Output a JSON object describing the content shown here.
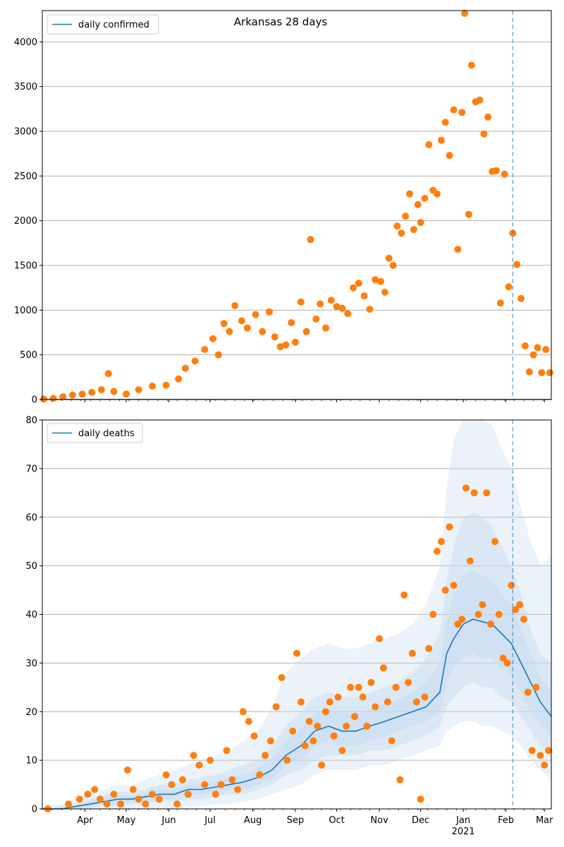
{
  "title": "Arkansas 28 days",
  "colors": {
    "line": "#1f77b4",
    "points": "#ff7f0e",
    "band": "#c6dbef",
    "vline": "#1f77b4",
    "grid": "#b0b0b0"
  },
  "x_axis": {
    "start_date": "2020-03-01",
    "end_date": "2021-03-06",
    "month_labels": [
      {
        "date": "2020-04-01",
        "label": "Apr"
      },
      {
        "date": "2020-05-01",
        "label": "May"
      },
      {
        "date": "2020-06-01",
        "label": "Jun"
      },
      {
        "date": "2020-07-01",
        "label": "Jul"
      },
      {
        "date": "2020-08-01",
        "label": "Aug"
      },
      {
        "date": "2020-09-01",
        "label": "Sep"
      },
      {
        "date": "2020-10-01",
        "label": "Oct"
      },
      {
        "date": "2020-11-01",
        "label": "Nov"
      },
      {
        "date": "2020-12-01",
        "label": "Dec"
      },
      {
        "date": "2021-01-01",
        "label": "Jan"
      },
      {
        "date": "2021-02-01",
        "label": "Feb"
      },
      {
        "date": "2021-03-01",
        "label": "Mar"
      }
    ],
    "year_label": {
      "date": "2021-01-01",
      "label": "2021"
    },
    "vline_date": "2021-02-06"
  },
  "chart_data": [
    {
      "type": "scatter",
      "legend": "daily confirmed",
      "legend_position": "upper-left",
      "ylim": [
        0,
        4350
      ],
      "yticks": [
        0,
        500,
        1000,
        1500,
        2000,
        2500,
        3000,
        3500,
        4000
      ],
      "grid": "y",
      "model_line": {
        "x": [
          "2020-03-01",
          "2021-03-06"
        ],
        "y": [
          0,
          0
        ]
      },
      "observed": {
        "x": [
          "2020-03-02",
          "2020-03-09",
          "2020-03-16",
          "2020-03-23",
          "2020-03-30",
          "2020-04-06",
          "2020-04-13",
          "2020-04-18",
          "2020-04-22",
          "2020-05-01",
          "2020-05-10",
          "2020-05-20",
          "2020-05-30",
          "2020-06-08",
          "2020-06-13",
          "2020-06-20",
          "2020-06-27",
          "2020-07-03",
          "2020-07-07",
          "2020-07-11",
          "2020-07-15",
          "2020-07-19",
          "2020-07-24",
          "2020-07-28",
          "2020-08-03",
          "2020-08-08",
          "2020-08-13",
          "2020-08-17",
          "2020-08-21",
          "2020-08-25",
          "2020-08-29",
          "2020-09-01",
          "2020-09-05",
          "2020-09-09",
          "2020-09-12",
          "2020-09-16",
          "2020-09-19",
          "2020-09-23",
          "2020-09-27",
          "2020-10-01",
          "2020-10-05",
          "2020-10-09",
          "2020-10-13",
          "2020-10-17",
          "2020-10-21",
          "2020-10-25",
          "2020-10-29",
          "2020-11-02",
          "2020-11-05",
          "2020-11-08",
          "2020-11-11",
          "2020-11-14",
          "2020-11-17",
          "2020-11-20",
          "2020-11-23",
          "2020-11-26",
          "2020-11-29",
          "2020-12-01",
          "2020-12-04",
          "2020-12-07",
          "2020-12-10",
          "2020-12-13",
          "2020-12-16",
          "2020-12-19",
          "2020-12-22",
          "2020-12-25",
          "2020-12-28",
          "2020-12-31",
          "2021-01-02",
          "2021-01-05",
          "2021-01-07",
          "2021-01-10",
          "2021-01-13",
          "2021-01-16",
          "2021-01-19",
          "2021-01-22",
          "2021-01-25",
          "2021-01-28",
          "2021-01-31",
          "2021-02-03",
          "2021-02-06",
          "2021-02-09",
          "2021-02-12",
          "2021-02-15",
          "2021-02-18",
          "2021-02-21",
          "2021-02-24",
          "2021-02-27",
          "2021-03-02",
          "2021-03-05"
        ],
        "y": [
          5,
          12,
          30,
          50,
          60,
          80,
          110,
          290,
          90,
          60,
          110,
          150,
          160,
          230,
          350,
          430,
          560,
          680,
          500,
          850,
          760,
          1050,
          880,
          800,
          950,
          760,
          980,
          700,
          590,
          610,
          860,
          640,
          1090,
          760,
          1790,
          900,
          1070,
          800,
          1110,
          1040,
          1020,
          960,
          1250,
          1300,
          1160,
          1010,
          1340,
          1320,
          1200,
          1580,
          1500,
          1940,
          1860,
          2050,
          2300,
          1900,
          2180,
          1980,
          2250,
          2850,
          2340,
          2300,
          2900,
          3100,
          2730,
          3240,
          1680,
          3210,
          4320,
          2070,
          3740,
          3330,
          3350,
          2970,
          3160,
          2550,
          2560,
          1080,
          2520,
          1260,
          1860,
          1510,
          1130,
          600,
          310,
          500,
          580,
          300,
          560,
          300
        ]
      }
    },
    {
      "type": "line",
      "legend": "daily deaths",
      "legend_position": "upper-left",
      "ylim": [
        0,
        80
      ],
      "yticks": [
        0,
        10,
        20,
        30,
        40,
        50,
        60,
        70,
        80
      ],
      "grid": "y",
      "model_line": {
        "x": [
          "2020-03-01",
          "2020-03-15",
          "2020-03-25",
          "2020-04-05",
          "2020-04-15",
          "2020-04-25",
          "2020-05-05",
          "2020-05-15",
          "2020-05-25",
          "2020-06-05",
          "2020-06-15",
          "2020-06-25",
          "2020-07-05",
          "2020-07-15",
          "2020-07-25",
          "2020-08-05",
          "2020-08-15",
          "2020-08-25",
          "2020-09-05",
          "2020-09-15",
          "2020-09-25",
          "2020-10-05",
          "2020-10-15",
          "2020-10-25",
          "2020-11-05",
          "2020-11-15",
          "2020-11-25",
          "2020-12-05",
          "2020-12-15",
          "2020-12-20",
          "2020-12-25",
          "2021-01-01",
          "2021-01-08",
          "2021-01-15",
          "2021-01-22",
          "2021-01-29",
          "2021-02-05",
          "2021-02-12",
          "2021-02-19",
          "2021-02-26",
          "2021-03-06"
        ],
        "y": [
          0,
          0,
          0.5,
          1,
          1.5,
          2,
          2,
          2.5,
          3,
          3,
          4,
          4,
          4.5,
          5,
          5.5,
          6.5,
          8,
          11,
          13,
          16,
          17,
          16,
          16,
          17,
          18,
          19,
          20,
          21,
          24,
          32,
          35,
          38,
          39,
          38.5,
          38,
          36,
          34,
          30,
          26,
          22,
          19
        ]
      },
      "bands": [
        {
          "name": "band-outer",
          "opacity": 0.35,
          "lower": [
            0,
            0,
            0,
            0,
            0,
            0,
            0,
            0,
            0,
            0,
            0.5,
            0.5,
            1,
            1,
            1.5,
            2,
            3,
            4,
            5,
            7,
            8,
            8,
            8,
            9,
            9,
            10,
            11,
            12,
            13,
            16,
            17,
            18,
            18,
            17,
            17,
            16,
            15,
            13,
            10,
            8,
            6
          ],
          "upper": [
            0.5,
            1,
            2,
            3,
            4,
            5,
            5,
            6,
            7,
            8,
            9,
            10,
            11,
            12,
            14,
            16,
            21,
            28,
            31,
            33,
            34,
            33,
            33,
            34,
            35,
            36,
            38,
            42,
            50,
            66,
            76,
            80,
            80,
            80,
            79,
            74,
            70,
            62,
            55,
            50,
            52
          ]
        },
        {
          "name": "band-middle",
          "opacity": 0.45,
          "lower": [
            0,
            0,
            0,
            0.2,
            0.5,
            0.8,
            1,
            1.2,
            1.5,
            1.5,
            2,
            2,
            2.5,
            3,
            3,
            4,
            5,
            7,
            8,
            10,
            11,
            11,
            11,
            12,
            12,
            13,
            14,
            15,
            17,
            21,
            23,
            25,
            26,
            25,
            25,
            23,
            22,
            19,
            16,
            13,
            11
          ],
          "upper": [
            0.2,
            0.5,
            1,
            2,
            3,
            3.5,
            3.5,
            4,
            5,
            5,
            6,
            6.5,
            7,
            8,
            9,
            10,
            13,
            17,
            20,
            23,
            24,
            23,
            23,
            24,
            25,
            26,
            28,
            31,
            36,
            47,
            54,
            60,
            61,
            60,
            58,
            54,
            50,
            44,
            37,
            32,
            30
          ]
        },
        {
          "name": "band-inner",
          "opacity": 0.55,
          "lower": [
            0,
            0,
            0.2,
            0.5,
            1,
            1.2,
            1.5,
            1.8,
            2,
            2,
            3,
            3,
            3.5,
            4,
            4,
            5,
            6,
            9,
            10,
            13,
            14,
            13,
            13,
            14,
            15,
            16,
            17,
            18,
            20,
            26,
            29,
            31,
            32,
            31,
            31,
            29,
            27,
            24,
            20,
            17,
            15
          ],
          "upper": [
            0,
            0.3,
            0.8,
            1.5,
            2.2,
            2.8,
            2.8,
            3.3,
            4,
            4,
            5,
            5,
            5.8,
            6.5,
            7,
            8.5,
            10.5,
            14,
            16.5,
            19.5,
            20.5,
            19.5,
            19.5,
            20.5,
            21.5,
            22.5,
            24,
            26,
            30,
            39,
            44,
            48,
            49,
            48,
            47,
            44,
            42,
            37,
            32,
            27,
            24
          ]
        }
      ],
      "observed": {
        "x": [
          "2020-03-05",
          "2020-03-20",
          "2020-03-28",
          "2020-04-03",
          "2020-04-08",
          "2020-04-12",
          "2020-04-17",
          "2020-04-22",
          "2020-04-27",
          "2020-05-02",
          "2020-05-06",
          "2020-05-10",
          "2020-05-15",
          "2020-05-20",
          "2020-05-25",
          "2020-05-30",
          "2020-06-03",
          "2020-06-07",
          "2020-06-11",
          "2020-06-15",
          "2020-06-19",
          "2020-06-23",
          "2020-06-27",
          "2020-07-01",
          "2020-07-05",
          "2020-07-09",
          "2020-07-13",
          "2020-07-17",
          "2020-07-21",
          "2020-07-25",
          "2020-07-29",
          "2020-08-02",
          "2020-08-06",
          "2020-08-10",
          "2020-08-14",
          "2020-08-18",
          "2020-08-22",
          "2020-08-26",
          "2020-08-30",
          "2020-09-02",
          "2020-09-05",
          "2020-09-08",
          "2020-09-11",
          "2020-09-14",
          "2020-09-17",
          "2020-09-20",
          "2020-09-23",
          "2020-09-26",
          "2020-09-29",
          "2020-10-02",
          "2020-10-05",
          "2020-10-08",
          "2020-10-11",
          "2020-10-14",
          "2020-10-17",
          "2020-10-20",
          "2020-10-23",
          "2020-10-26",
          "2020-10-29",
          "2020-11-01",
          "2020-11-04",
          "2020-11-07",
          "2020-11-10",
          "2020-11-13",
          "2020-11-16",
          "2020-11-19",
          "2020-11-22",
          "2020-11-25",
          "2020-11-28",
          "2020-12-01",
          "2020-12-04",
          "2020-12-07",
          "2020-12-10",
          "2020-12-13",
          "2020-12-16",
          "2020-12-19",
          "2020-12-22",
          "2020-12-25",
          "2020-12-28",
          "2020-12-31",
          "2021-01-03",
          "2021-01-06",
          "2021-01-09",
          "2021-01-12",
          "2021-01-15",
          "2021-01-18",
          "2021-01-21",
          "2021-01-24",
          "2021-01-27",
          "2021-01-30",
          "2021-02-02",
          "2021-02-05",
          "2021-02-08",
          "2021-02-11",
          "2021-02-14",
          "2021-02-17",
          "2021-02-20",
          "2021-02-23",
          "2021-02-26",
          "2021-03-01",
          "2021-03-04"
        ],
        "y": [
          0,
          1,
          2,
          3,
          4,
          2,
          1,
          3,
          1,
          8,
          4,
          2,
          1,
          3,
          2,
          7,
          5,
          1,
          6,
          3,
          11,
          9,
          5,
          10,
          3,
          5,
          12,
          6,
          4,
          20,
          18,
          15,
          7,
          11,
          14,
          21,
          27,
          10,
          16,
          32,
          22,
          13,
          18,
          14,
          17,
          9,
          20,
          22,
          15,
          23,
          12,
          17,
          25,
          19,
          25,
          23,
          17,
          26,
          21,
          35,
          29,
          22,
          14,
          25,
          6,
          44,
          26,
          32,
          22,
          2,
          23,
          33,
          40,
          53,
          55,
          45,
          58,
          46,
          38,
          39,
          66,
          51,
          65,
          40,
          42,
          65,
          38,
          55,
          40,
          31,
          30,
          46,
          41,
          42,
          39,
          24,
          12,
          25,
          11,
          9,
          12
        ]
      }
    }
  ]
}
